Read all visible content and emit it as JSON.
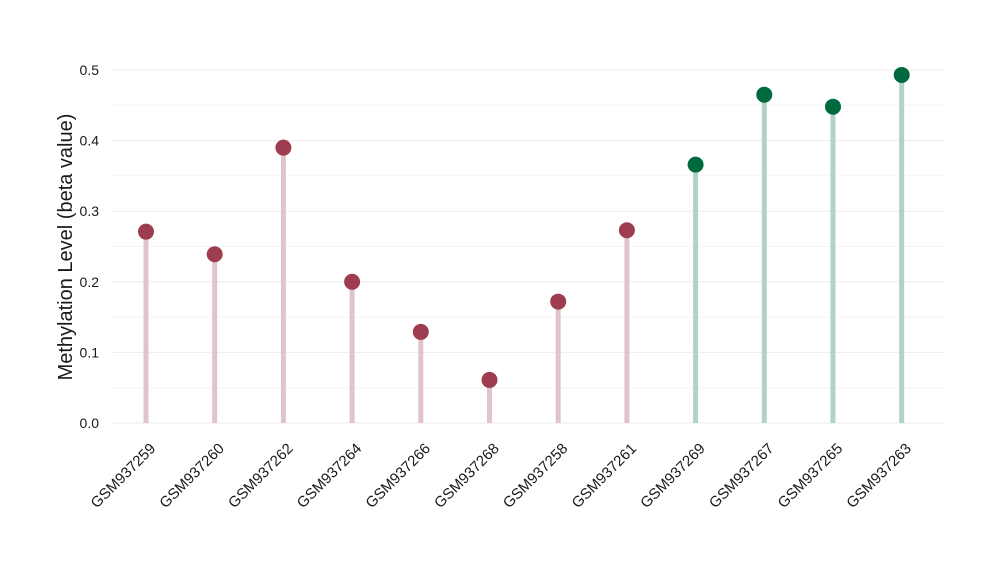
{
  "chart_data": {
    "type": "lollipop",
    "title": "",
    "xlabel": "",
    "ylabel": "Methylation Level (beta value)",
    "ylim": [
      0,
      0.5
    ],
    "yticks": [
      "0.0",
      "0.1",
      "0.2",
      "0.3",
      "0.4",
      "0.5"
    ],
    "grid": true,
    "legend": "none",
    "categories": [
      "GSM937259",
      "GSM937260",
      "GSM937262",
      "GSM937264",
      "GSM937266",
      "GSM937268",
      "GSM937258",
      "GSM937261",
      "GSM937269",
      "GSM937267",
      "GSM937265",
      "GSM937263"
    ],
    "values": [
      0.271,
      0.239,
      0.39,
      0.2,
      0.129,
      0.061,
      0.172,
      0.273,
      0.366,
      0.465,
      0.448,
      0.493
    ],
    "groups": [
      "red",
      "red",
      "red",
      "red",
      "red",
      "red",
      "red",
      "red",
      "green",
      "green",
      "green",
      "green"
    ],
    "colors": {
      "red_point": "#9e3d4f",
      "red_stem": "#dfc4cb",
      "green_point": "#006a3f",
      "green_stem": "#b2d2c5"
    }
  }
}
